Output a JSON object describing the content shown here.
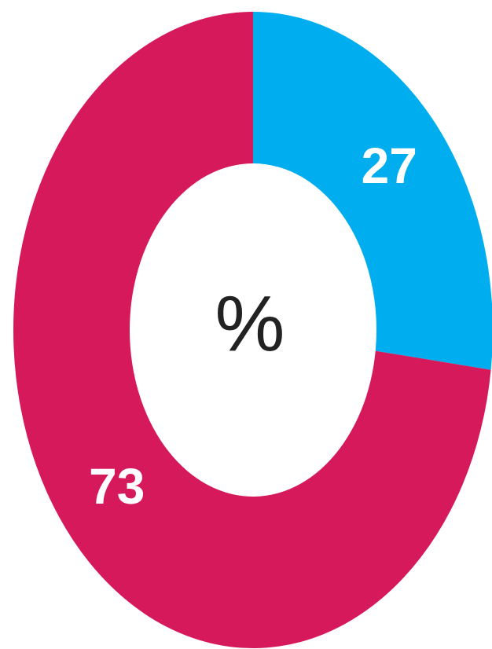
{
  "chart_data": {
    "type": "donut",
    "values": [
      27,
      73
    ],
    "colors": [
      "#00aeef",
      "#d6195a"
    ],
    "center_label": "%"
  }
}
